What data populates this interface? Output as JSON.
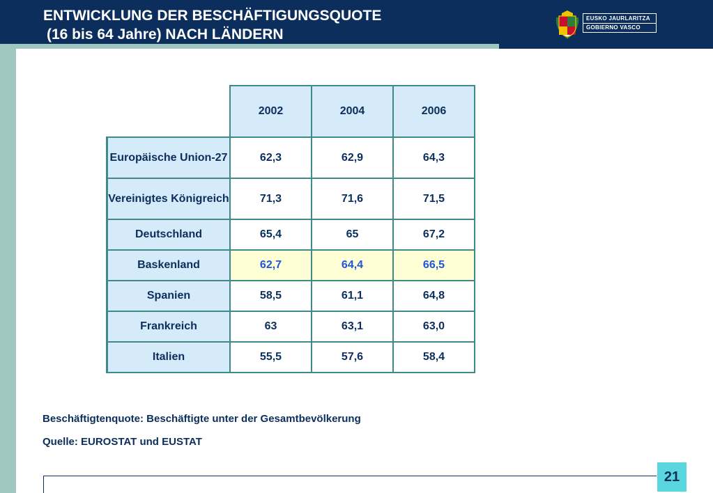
{
  "header": {
    "title_line1": "ENTWICKLUNG DER BESCHÄFTIGUNGSQUOTE",
    "title_line2": "(16 bis 64 Jahre) NACH LÄNDERN"
  },
  "logo": {
    "line1": "EUSKO JAURLARITZA",
    "line2": "GOBIERNO VASCO"
  },
  "colors": {
    "header": "#0b2e5c",
    "accent_stripe": "#9fc7c0",
    "cell_header": "#d5ebf9",
    "highlight_row": "#ffffd6",
    "highlight_text": "#1f55d8",
    "page_badge": "#5ad6df"
  },
  "table": {
    "years": [
      "2002",
      "2004",
      "2006"
    ],
    "rows": [
      {
        "label": "Europäische Union-27",
        "values": [
          "62,3",
          "62,9",
          "64,3"
        ]
      },
      {
        "label": "Vereinigtes Königreich",
        "values": [
          "71,3",
          "71,6",
          "71,5"
        ]
      },
      {
        "label": "Deutschland",
        "values": [
          "65,4",
          "65",
          "67,2"
        ]
      },
      {
        "label": "Baskenland",
        "values": [
          "62,7",
          "64,4",
          "66,5"
        ]
      },
      {
        "label": "Spanien",
        "values": [
          "58,5",
          "61,1",
          "64,8"
        ]
      },
      {
        "label": "Frankreich",
        "values": [
          "63",
          "63,1",
          "63,0"
        ]
      },
      {
        "label": "Italien",
        "values": [
          "55,5",
          "57,6",
          "58,4"
        ]
      }
    ]
  },
  "notes": {
    "definition": "Beschäftigtenquote: Beschäftigte unter der Gesamtbevölkerung",
    "source": "Quelle: EUROSTAT und EUSTAT"
  },
  "page_number": "21"
}
